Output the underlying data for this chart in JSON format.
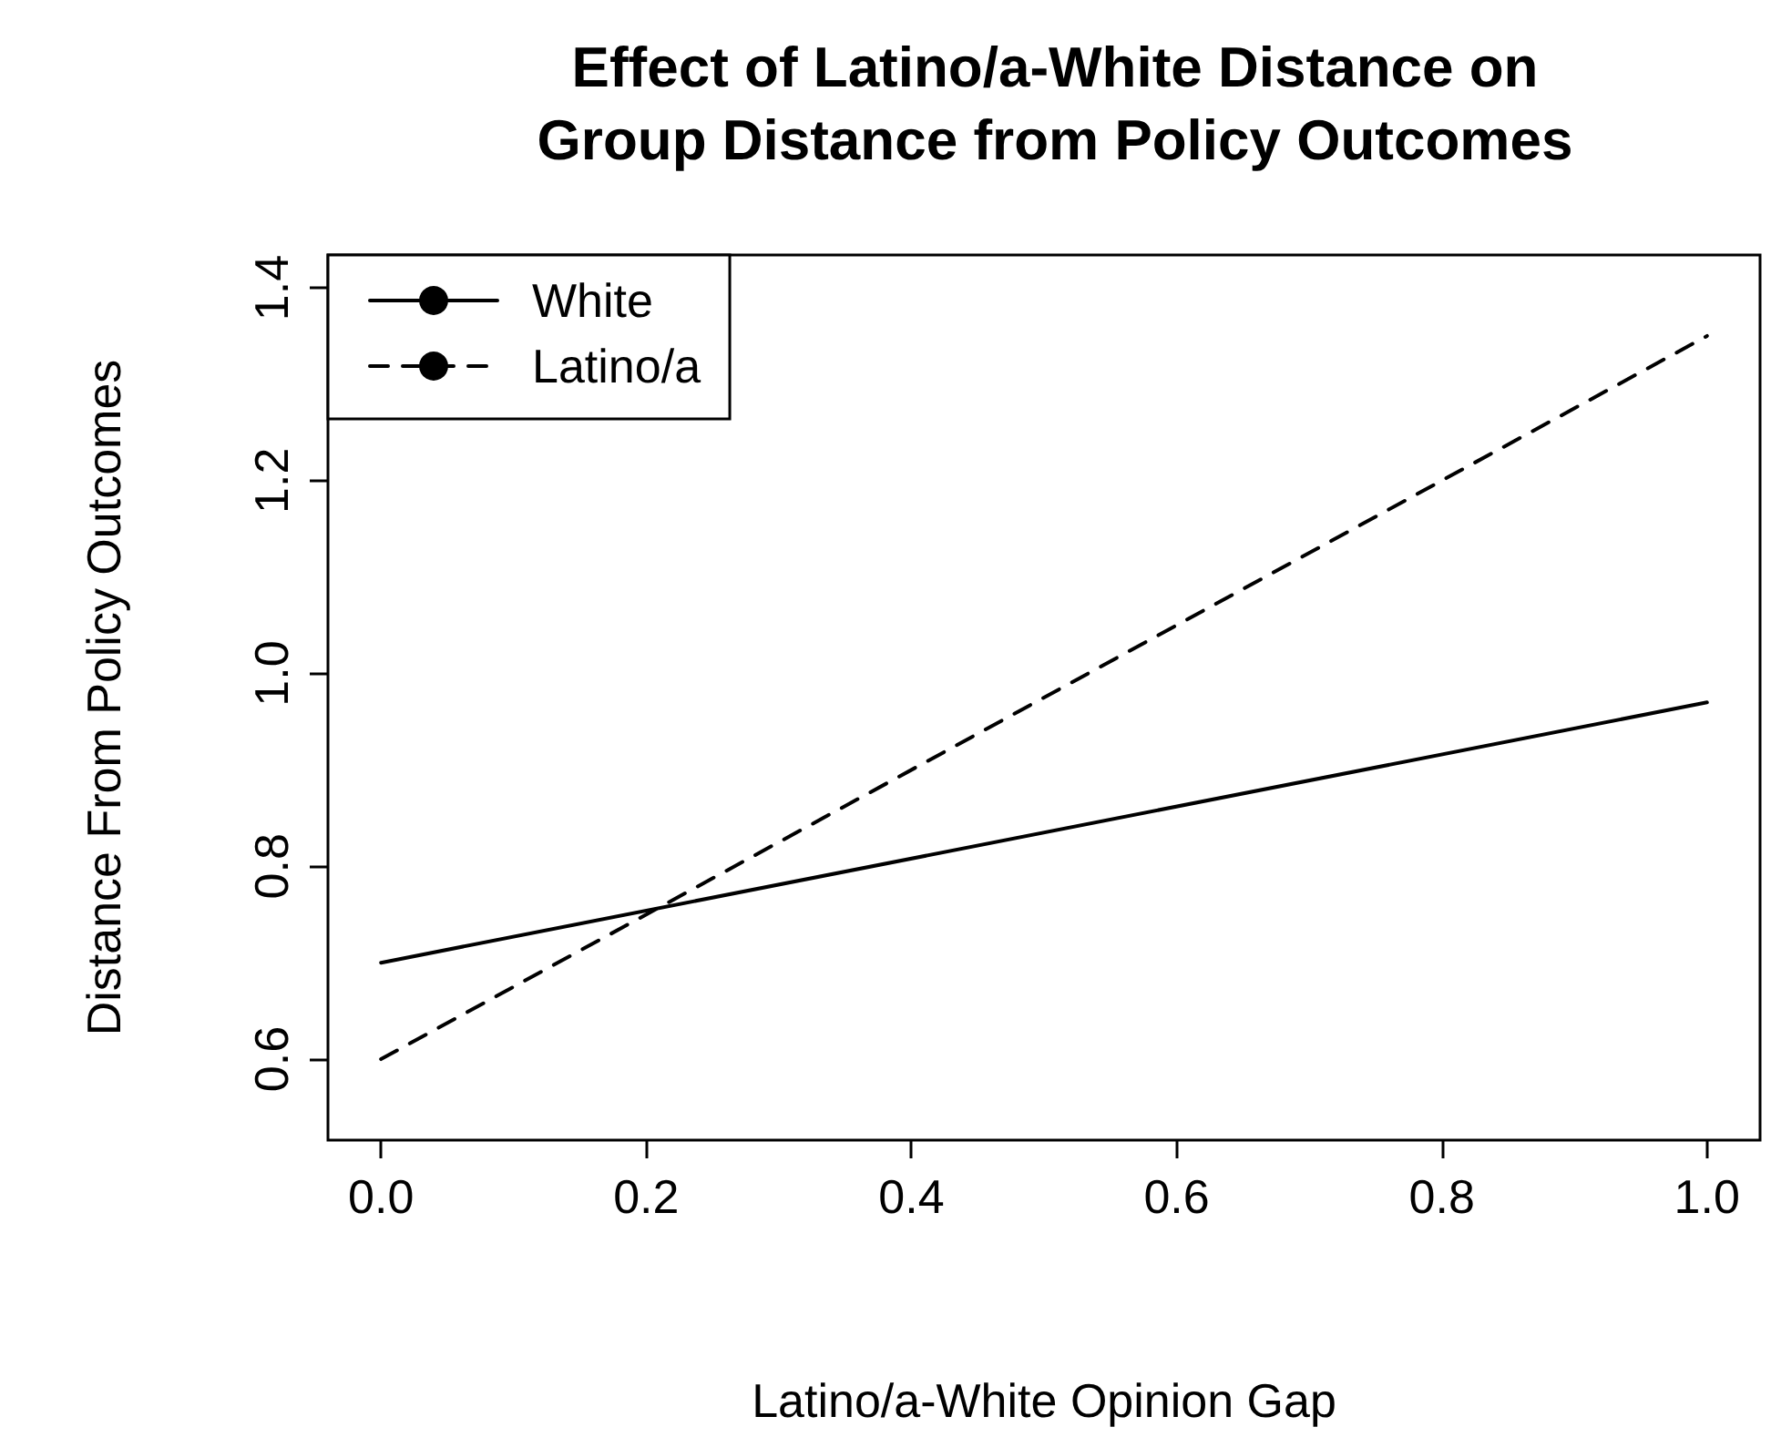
{
  "chart_data": {
    "type": "line",
    "title": "Effect of Latino/a-White Distance on\nGroup Distance from Policy Outcomes",
    "xlabel": "Latino/a-White Opinion Gap",
    "ylabel": "Distance From Policy Outcomes",
    "x": [
      0,
      1
    ],
    "series": [
      {
        "name": "White",
        "color": "#000000",
        "values": [
          0.7,
          0.97
        ],
        "line_style": "solid"
      },
      {
        "name": "Latino/a",
        "color": "#000000",
        "values": [
          0.6,
          1.35
        ],
        "line_style": "dashed"
      }
    ],
    "xlim": [
      -0.04,
      1.04
    ],
    "xticks": [
      {
        "value": 0,
        "label": "0.0"
      },
      0.2,
      0.4,
      0.6,
      0.8,
      {
        "value": 1,
        "label": "1.0"
      }
    ],
    "ylim": [
      0.516,
      1.434
    ],
    "yticks": [
      0.6,
      0.8,
      {
        "value": 1,
        "label": "1.0"
      },
      1.2,
      1.4
    ],
    "grid": false,
    "legend": "top left",
    "marker": "none"
  }
}
